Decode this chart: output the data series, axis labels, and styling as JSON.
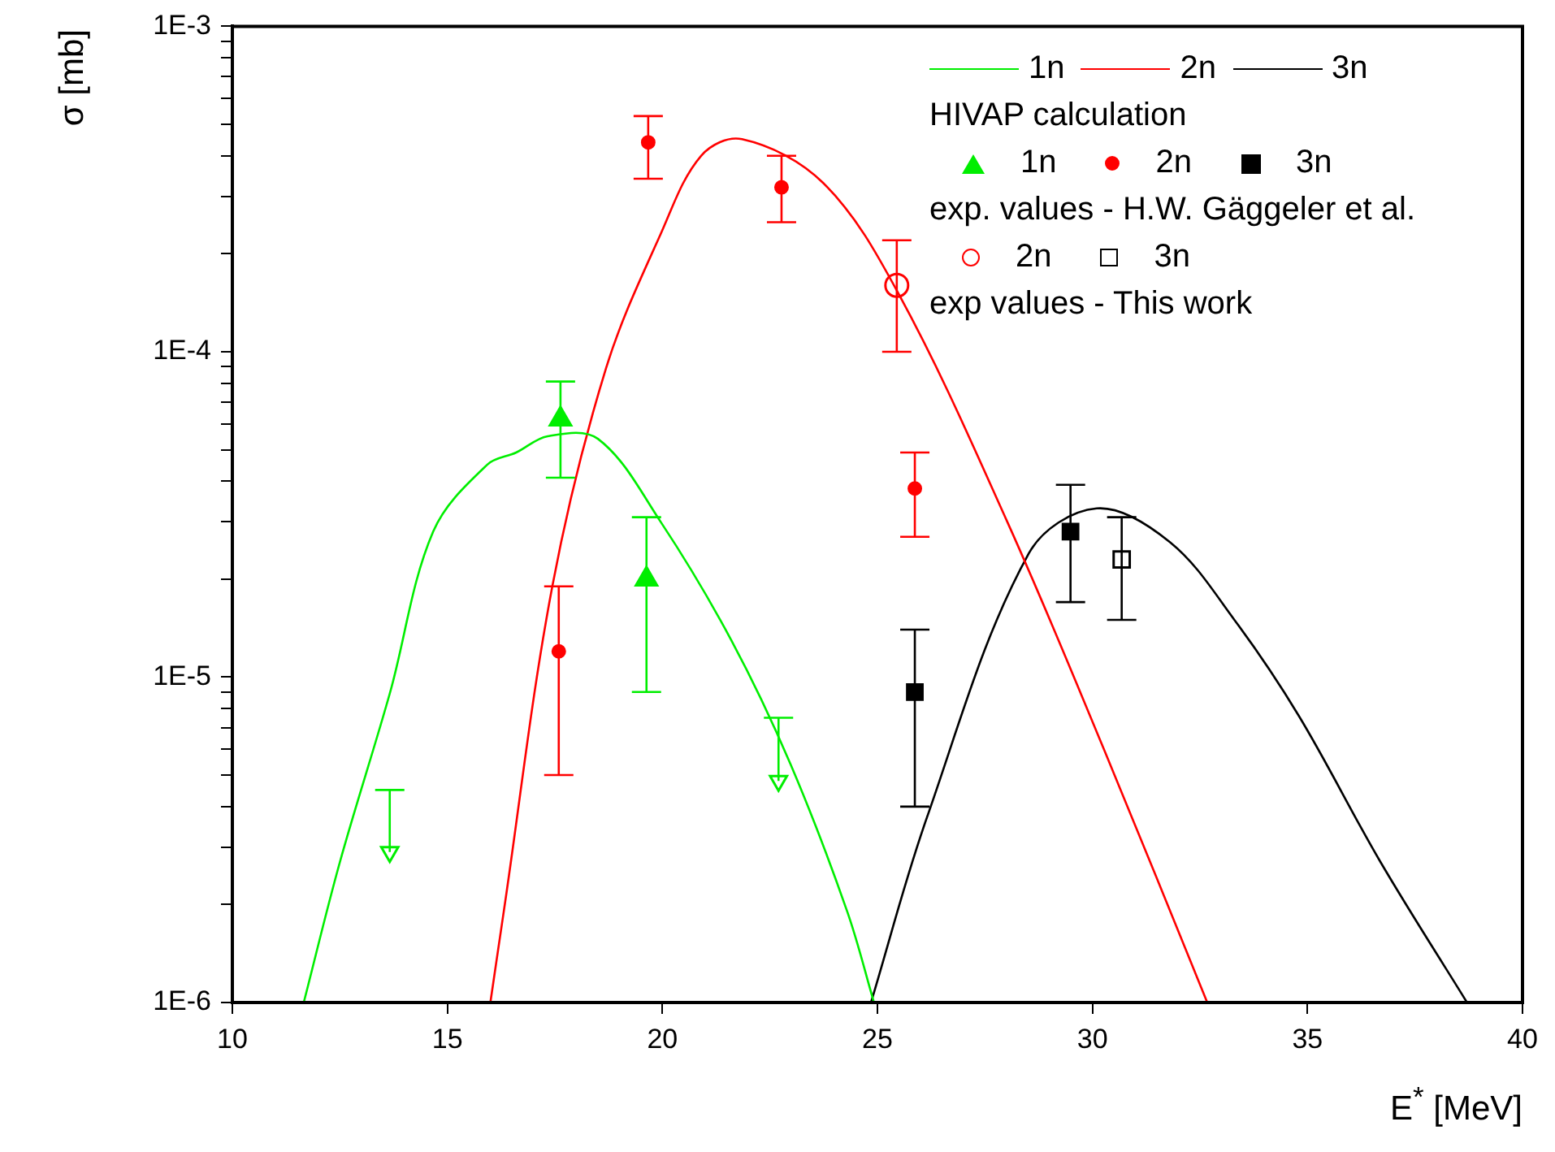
{
  "chart_data": {
    "type": "scatter",
    "xlabel": "E$^{*}$ [MeV]",
    "ylabel": "σ [mb]",
    "log": "y",
    "grid": false,
    "legend": "top right",
    "xlim": [
      10,
      40
    ],
    "xticks": [
      10,
      15,
      20,
      25,
      30,
      35,
      40
    ],
    "ylim": [
      1e-06,
      0.001
    ],
    "yticks": [
      {
        "value": 1e-06,
        "label": "1E-6"
      },
      {
        "value": 2e-06,
        "label": null
      },
      {
        "value": 3e-06,
        "label": null
      },
      {
        "value": 4e-06,
        "label": null
      },
      {
        "value": 5e-06,
        "label": null
      },
      {
        "value": 6e-06,
        "label": null
      },
      {
        "value": 7e-06,
        "label": null
      },
      {
        "value": 8e-06,
        "label": null
      },
      {
        "value": 9e-06,
        "label": null
      },
      {
        "value": 1e-05,
        "label": "1E-5"
      },
      {
        "value": 2e-05,
        "label": null
      },
      {
        "value": 3e-05,
        "label": null
      },
      {
        "value": 4e-05,
        "label": null
      },
      {
        "value": 5e-05,
        "label": null
      },
      {
        "value": 6e-05,
        "label": null
      },
      {
        "value": 7e-05,
        "label": null
      },
      {
        "value": 8e-05,
        "label": null
      },
      {
        "value": 9e-05,
        "label": null
      },
      {
        "value": 0.0001,
        "label": "1E-4"
      },
      {
        "value": 0.0002,
        "label": null
      },
      {
        "value": 0.0003,
        "label": null
      },
      {
        "value": 0.0004,
        "label": null
      },
      {
        "value": 0.0005,
        "label": null
      },
      {
        "value": 0.0006,
        "label": null
      },
      {
        "value": 0.0007,
        "label": null
      },
      {
        "value": 0.0008,
        "label": null
      },
      {
        "value": 0.0009,
        "label": null
      },
      {
        "value": 0.001,
        "label": "1E-3"
      }
    ],
    "annotations": [
      "HIVAP calculation",
      "exp. values - H.W. Gäggeler et al.",
      "exp values - This work"
    ],
    "series": [
      {
        "name": "1n",
        "type": "line",
        "color": "#00ee00",
        "marker": "none",
        "x": [
          11.66,
          12.5,
          13.66,
          14.67,
          15.93,
          16.6,
          17.33,
          18.5,
          19.96,
          21.6,
          22.98,
          24.3,
          24.92
        ],
        "values": [
          1e-06,
          2.7e-06,
          8.9e-06,
          2.8e-05,
          4.5e-05,
          4.9e-05,
          5.5e-05,
          5.4e-05,
          3e-05,
          1.3e-05,
          5.4e-06,
          1.9e-06,
          1e-06
        ]
      },
      {
        "name": "2n",
        "type": "line",
        "color": "#ff0000",
        "marker": "none",
        "x": [
          16.0,
          16.31,
          17.44,
          18.69,
          19.96,
          20.9,
          21.85,
          23.74,
          25.5,
          28.02,
          30.29,
          32.67
        ],
        "values": [
          1e-06,
          1.9e-06,
          1.9e-05,
          8.9e-05,
          0.00023,
          0.0004,
          0.00045,
          0.00033,
          0.00015,
          3e-05,
          5.9e-06,
          1e-06
        ]
      },
      {
        "name": "3n",
        "type": "line",
        "color": "#000000",
        "marker": "none",
        "x": [
          24.85,
          26.15,
          28.52,
          30.1,
          31.8,
          33.3,
          34.8,
          36.7,
          38.71
        ],
        "values": [
          1e-06,
          3.7e-06,
          2.4e-05,
          3.3e-05,
          2.6e-05,
          1.5e-05,
          7.6e-06,
          2.7e-06,
          1e-06
        ]
      },
      {
        "name": "1n",
        "color": "#00ee00",
        "marker": "triangle",
        "x": [
          17.63,
          19.63
        ],
        "values": [
          6.2e-05,
          2e-05
        ],
        "errors": [
          [
            4.1e-05,
            8.1e-05
          ],
          [
            9e-06,
            3.1e-05
          ]
        ]
      },
      {
        "name": "2n",
        "color": "#ff0000",
        "marker": "circle",
        "x": [
          17.59,
          19.67,
          22.77,
          25.87
        ],
        "values": [
          1.2e-05,
          0.00044,
          0.00032,
          3.8e-05
        ],
        "errors": [
          [
            5e-06,
            1.9e-05
          ],
          [
            0.00034,
            0.00053
          ],
          [
            0.00025,
            0.0004
          ],
          [
            2.7e-05,
            4.9e-05
          ]
        ]
      },
      {
        "name": "3n",
        "color": "#000000",
        "marker": "square",
        "x": [
          25.87,
          29.49
        ],
        "values": [
          9e-06,
          2.8e-05
        ],
        "errors": [
          [
            4e-06,
            1.4e-05
          ],
          [
            1.7e-05,
            3.9e-05
          ]
        ]
      },
      {
        "name": "2n",
        "color": "#ff0000",
        "marker": "circle",
        "x": [
          25.45
        ],
        "values": [
          0.00016
        ],
        "errors": [
          [
            0.0001,
            0.00022
          ]
        ]
      },
      {
        "name": "3n",
        "color": "#000000",
        "marker": "square",
        "x": [
          30.68
        ],
        "values": [
          2.3e-05
        ],
        "errors": [
          [
            1.5e-05,
            3.1e-05
          ]
        ]
      },
      {
        "color": "#00ee00",
        "marker": "triangle",
        "x": [
          13.66,
          22.7
        ],
        "values": [
          2.9e-06,
          4.8e-06
        ],
        "errors": [
          [
            2.9e-06,
            4.5e-06
          ],
          [
            4.8e-06,
            7.5e-06
          ]
        ]
      }
    ]
  }
}
